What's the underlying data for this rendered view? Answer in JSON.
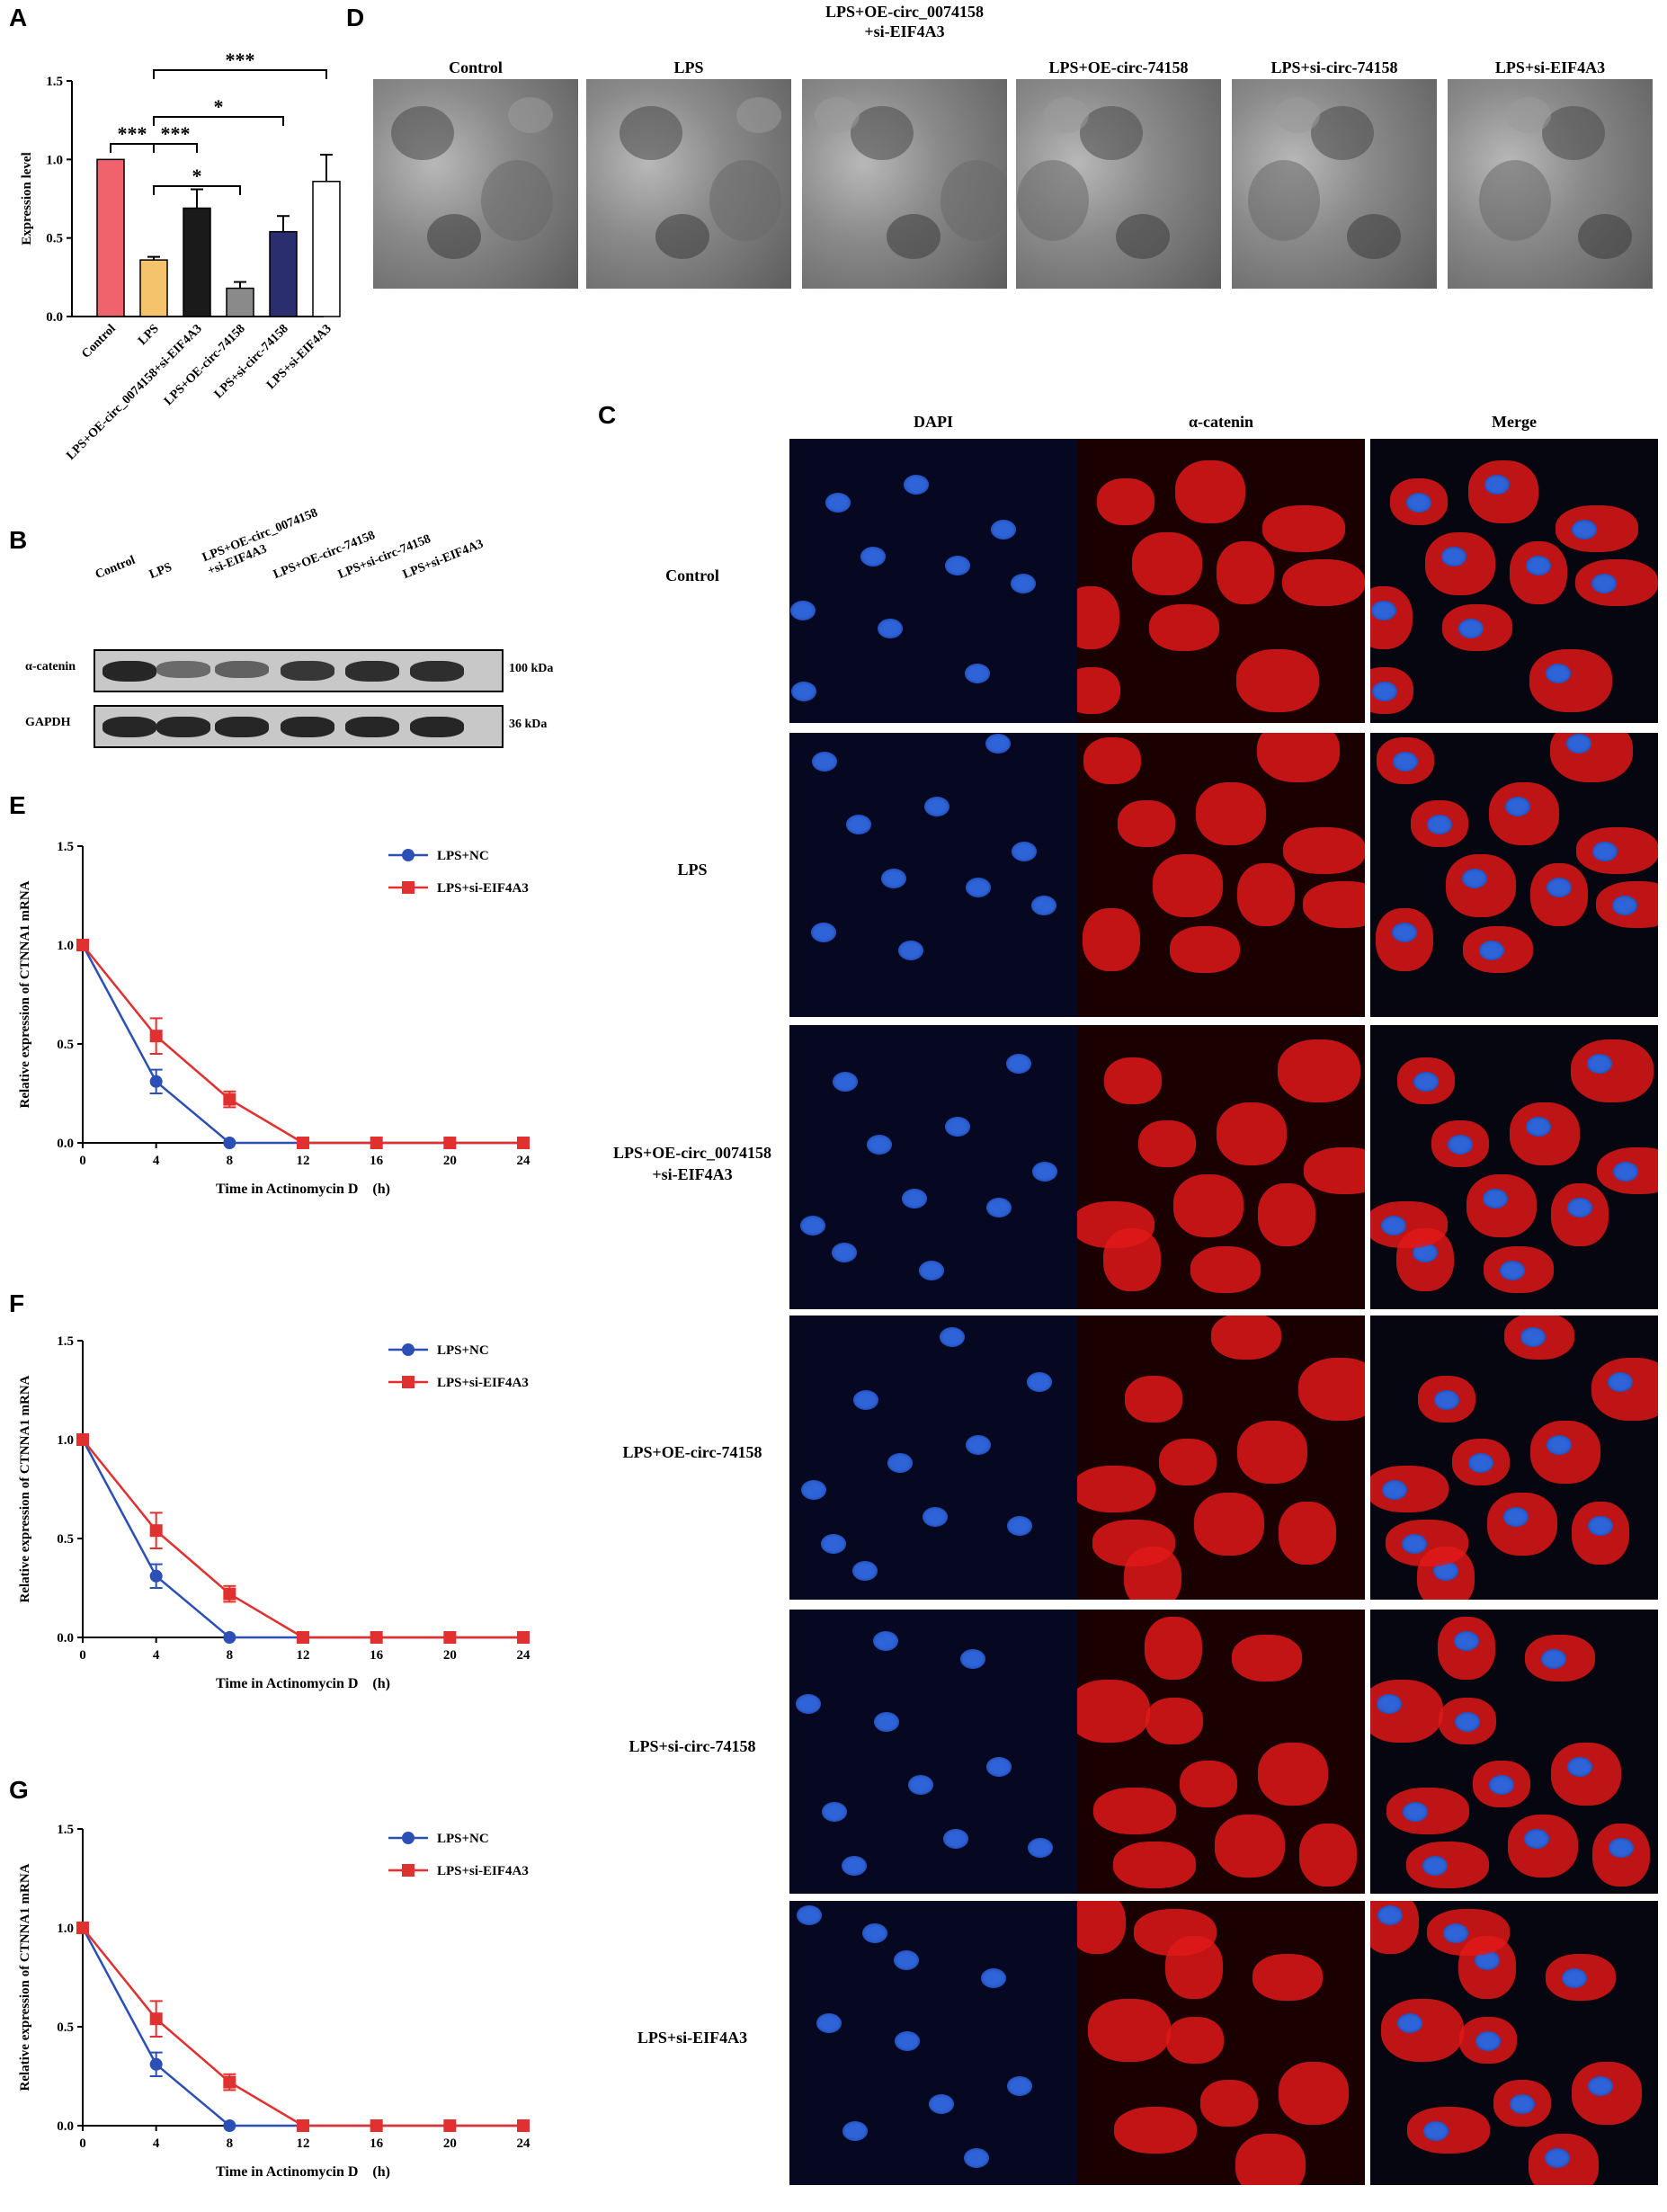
{
  "panel_letters": {
    "a": "A",
    "b": "B",
    "c": "C",
    "d": "D",
    "e": "E",
    "f": "F",
    "g": "G"
  },
  "chart_data": [
    {
      "panel": "A",
      "type": "bar",
      "ylabel": "Expression level",
      "ylim": [
        0,
        1.5
      ],
      "yticks": [
        "0.0",
        "0.5",
        "1.0",
        "1.5"
      ],
      "categories": [
        "Control",
        "LPS",
        "LPS+OE-circ_0074158+si-EIF4A3",
        "LPS+OE-circ-74158",
        "LPS+si-circ-74158",
        "LPS+si-EIF4A3"
      ],
      "values": [
        1.0,
        0.36,
        0.69,
        0.18,
        0.54,
        0.86
      ],
      "errors": [
        0.0,
        0.02,
        0.12,
        0.04,
        0.1,
        0.17
      ],
      "colors": [
        "#f0636c",
        "#f5c36b",
        "#1a1a1a",
        "#8a8a8a",
        "#2b2e6e",
        "#ffffff"
      ],
      "significance": [
        {
          "from": 0,
          "to": 1,
          "label": "***"
        },
        {
          "from": 1,
          "to": 2,
          "label": "***"
        },
        {
          "from": 1,
          "to": 3,
          "label": "*"
        },
        {
          "from": 1,
          "to": 4,
          "label": "*"
        },
        {
          "from": 1,
          "to": 5,
          "label": "***"
        }
      ]
    },
    {
      "panel": "E",
      "type": "line",
      "xlabel": "Time in Actinomycin D　(h)",
      "ylabel": "Relative expression of CTNNA1 mRNA",
      "x": [
        0,
        4,
        8,
        12,
        16,
        20,
        24
      ],
      "xticks": [
        "0",
        "4",
        "8",
        "12",
        "16",
        "20",
        "24"
      ],
      "yticks": [
        "0.0",
        "0.5",
        "1.0",
        "1.5"
      ],
      "ylim": [
        0,
        1.5
      ],
      "legend": "top-right",
      "series": [
        {
          "name": "LPS+NC",
          "color": "#2b4fb5",
          "marker": "circle",
          "values": [
            1.0,
            0.31,
            0.0,
            0.0,
            0.0,
            0.0,
            0.0
          ],
          "errors": [
            0,
            0.06,
            0,
            0,
            0,
            0,
            0
          ]
        },
        {
          "name": "LPS+si-EIF4A3",
          "color": "#e03030",
          "marker": "square",
          "values": [
            1.0,
            0.54,
            0.22,
            0.0,
            0.0,
            0.0,
            0.0
          ],
          "errors": [
            0,
            0.09,
            0.04,
            0,
            0,
            0,
            0
          ]
        }
      ]
    },
    {
      "panel": "F",
      "type": "line",
      "xlabel": "Time in Actinomycin D　(h)",
      "ylabel": "Relative expression of CTNNA1 mRNA",
      "x": [
        0,
        4,
        8,
        12,
        16,
        20,
        24
      ],
      "xticks": [
        "0",
        "4",
        "8",
        "12",
        "16",
        "20",
        "24"
      ],
      "yticks": [
        "0.0",
        "0.5",
        "1.0",
        "1.5"
      ],
      "ylim": [
        0,
        1.5
      ],
      "legend": "top-right",
      "series": [
        {
          "name": "LPS+NC",
          "color": "#2b4fb5",
          "marker": "circle",
          "values": [
            1.0,
            0.31,
            0.0,
            0.0,
            0.0,
            0.0,
            0.0
          ],
          "errors": [
            0,
            0.06,
            0,
            0,
            0,
            0,
            0
          ]
        },
        {
          "name": "LPS+si-EIF4A3",
          "color": "#e03030",
          "marker": "square",
          "values": [
            1.0,
            0.54,
            0.22,
            0.0,
            0.0,
            0.0,
            0.0
          ],
          "errors": [
            0,
            0.09,
            0.04,
            0,
            0,
            0,
            0
          ]
        }
      ]
    },
    {
      "panel": "G",
      "type": "line",
      "xlabel": "Time in Actinomycin D　(h)",
      "ylabel": "Relative expression of CTNNA1 mRNA",
      "x": [
        0,
        4,
        8,
        12,
        16,
        20,
        24
      ],
      "xticks": [
        "0",
        "4",
        "8",
        "12",
        "16",
        "20",
        "24"
      ],
      "yticks": [
        "0.0",
        "0.5",
        "1.0",
        "1.5"
      ],
      "ylim": [
        0,
        1.5
      ],
      "legend": "top-right",
      "series": [
        {
          "name": "LPS+NC",
          "color": "#2b4fb5",
          "marker": "circle",
          "values": [
            1.0,
            0.31,
            0.0,
            0.0,
            0.0,
            0.0,
            0.0
          ],
          "errors": [
            0,
            0.06,
            0,
            0,
            0,
            0,
            0
          ]
        },
        {
          "name": "LPS+si-EIF4A3",
          "color": "#e03030",
          "marker": "square",
          "values": [
            1.0,
            0.54,
            0.22,
            0.0,
            0.0,
            0.0,
            0.0
          ],
          "errors": [
            0,
            0.09,
            0.04,
            0,
            0,
            0,
            0
          ]
        }
      ]
    }
  ],
  "western_blot": {
    "lanes": [
      "Control",
      "LPS",
      "LPS+OE-circ_0074158\n+si-EIF4A3",
      "LPS+OE-circ-74158",
      "LPS+si-circ-74158",
      "LPS+si-EIF4A3"
    ],
    "rows": [
      {
        "protein": "α-catenin",
        "size": "100 kDa",
        "intensity": [
          0.95,
          0.55,
          0.6,
          0.85,
          0.9,
          0.9
        ]
      },
      {
        "protein": "GAPDH",
        "size": "36 kDa",
        "intensity": [
          0.95,
          0.95,
          0.95,
          0.95,
          0.95,
          0.95
        ]
      }
    ]
  },
  "tem_panel": {
    "labels": [
      "Control",
      "LPS",
      "LPS+OE-circ_0074158\n+si-EIF4A3",
      "LPS+OE-circ-74158",
      "LPS+si-circ-74158",
      "LPS+si-EIF4A3"
    ]
  },
  "if_panel": {
    "columns": [
      "DAPI",
      "α-catenin",
      "Merge"
    ],
    "rows": [
      "Control",
      "LPS",
      "LPS+OE-circ_0074158\n+si-EIF4A3",
      "LPS+OE-circ-74158",
      "LPS+si-circ-74158",
      "LPS+si-EIF4A3"
    ]
  },
  "colors": {
    "dapi": "#2f64d8",
    "catenin": "#e01818",
    "nc_line": "#2b4fb5",
    "si_line": "#e03030"
  }
}
